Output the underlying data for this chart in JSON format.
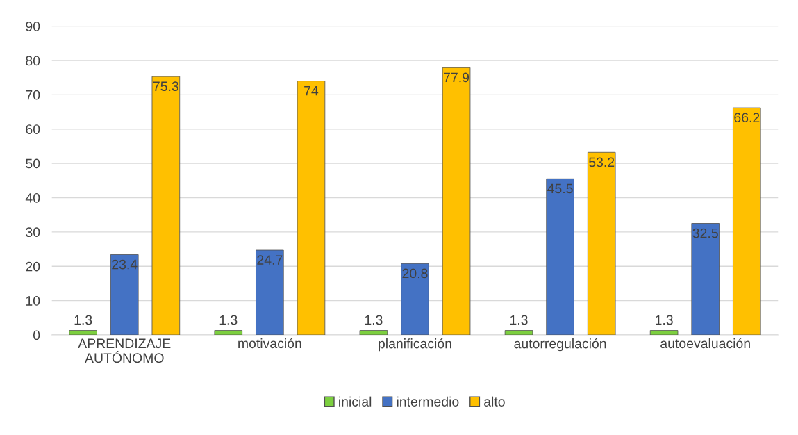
{
  "chart_data": {
    "type": "bar",
    "categories": [
      "APRENDIZAJE\nAUTÓNOMO",
      "motivación",
      "planificación",
      "autorregulación",
      "autoevaluación"
    ],
    "series": [
      {
        "name": "inicial",
        "color": "#7ccf3f",
        "values": [
          1.3,
          1.3,
          1.3,
          1.3,
          1.3
        ]
      },
      {
        "name": "intermedio",
        "color": "#4472c4",
        "values": [
          23.4,
          24.7,
          20.8,
          45.5,
          32.5
        ]
      },
      {
        "name": "alto",
        "color": "#ffc000",
        "values": [
          75.3,
          74,
          77.9,
          53.2,
          66.2
        ]
      }
    ],
    "ylim": [
      0,
      90
    ],
    "yticks": [
      0,
      10,
      20,
      30,
      40,
      50,
      60,
      70,
      80,
      90
    ],
    "grid": "y",
    "legend": "bottom",
    "data_labels": true
  }
}
